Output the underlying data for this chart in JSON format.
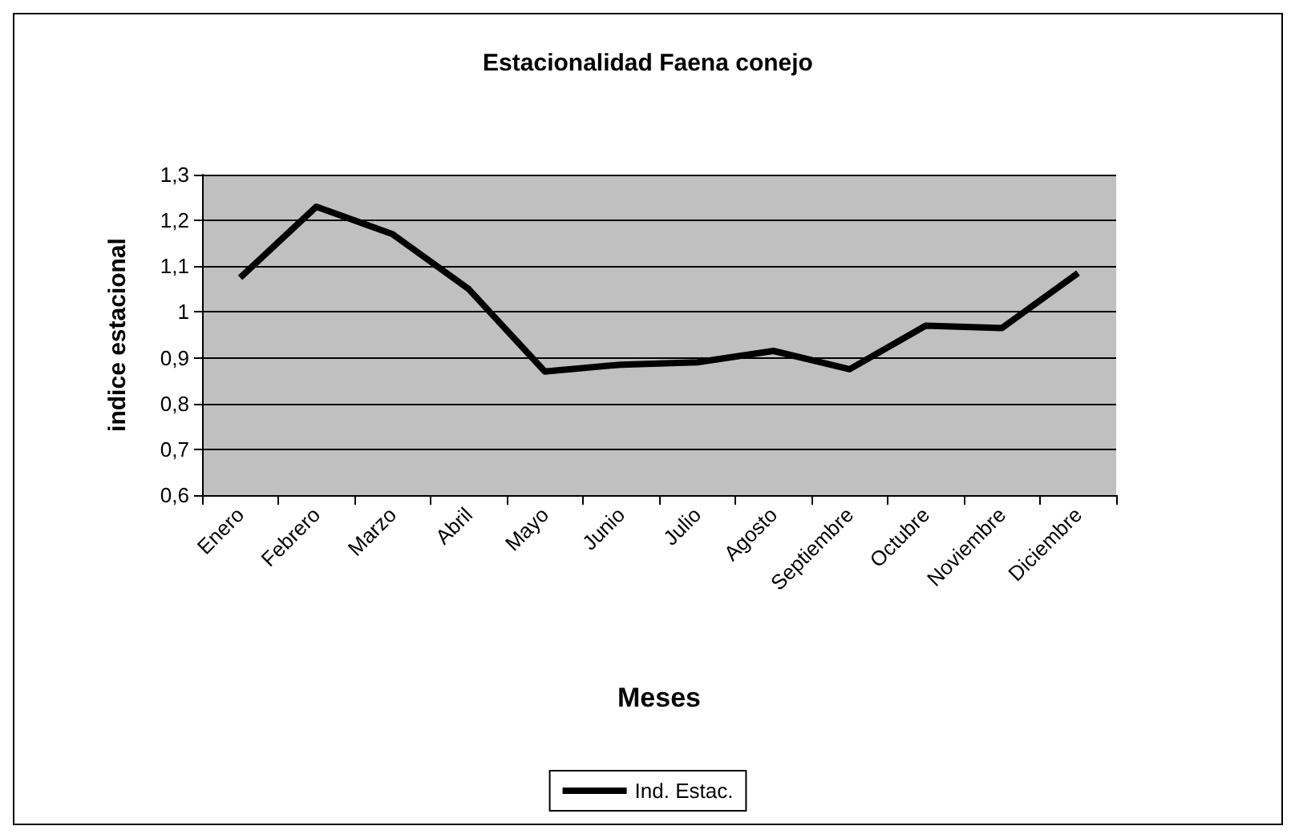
{
  "chart_data": {
    "type": "line",
    "title": "Estacionalidad Faena conejo",
    "xlabel": "Meses",
    "ylabel": "indice estacional",
    "categories": [
      "Enero",
      "Febrero",
      "Marzo",
      "Abril",
      "Mayo",
      "Junio",
      "Julio",
      "Agosto",
      "Septiembre",
      "Octubre",
      "Noviembre",
      "Diciembre"
    ],
    "series": [
      {
        "name": "Ind. Estac.",
        "color": "#000000",
        "values": [
          1.075,
          1.23,
          1.17,
          1.05,
          0.87,
          0.885,
          0.89,
          0.915,
          0.875,
          0.97,
          0.965,
          1.085
        ]
      }
    ],
    "ylim": [
      0.6,
      1.3
    ],
    "yticks": [
      {
        "value": 0.6,
        "label": "0,6"
      },
      {
        "value": 0.7,
        "label": "0,7"
      },
      {
        "value": 0.8,
        "label": "0,8"
      },
      {
        "value": 0.9,
        "label": "0,9"
      },
      {
        "value": 1,
        "label": "1"
      },
      {
        "value": 1.1,
        "label": "1,1"
      },
      {
        "value": 1.2,
        "label": "1,2"
      },
      {
        "value": 1.3,
        "label": "1,3"
      }
    ],
    "grid": "y",
    "legend": "bottom",
    "marker": "none",
    "line_style": "solid"
  }
}
